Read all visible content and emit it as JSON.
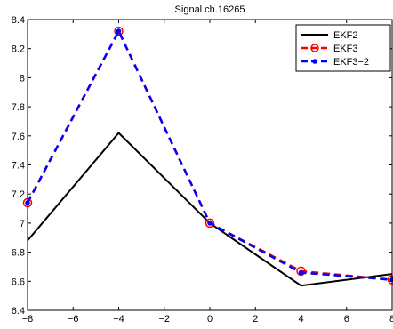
{
  "chart_data": {
    "type": "line",
    "title": "Signal ch.16265",
    "xlabel": "",
    "ylabel": "",
    "xlim": [
      -8,
      8
    ],
    "ylim": [
      6.4,
      8.4
    ],
    "xticks": [
      -8,
      -6,
      -4,
      -2,
      0,
      2,
      4,
      6,
      8
    ],
    "xtick_labels": [
      "−8",
      "−6",
      "−4",
      "−2",
      "0",
      "2",
      "4",
      "6",
      "8"
    ],
    "yticks": [
      6.4,
      6.6,
      6.8,
      7,
      7.2,
      7.4,
      7.6,
      7.8,
      8,
      8.2,
      8.4
    ],
    "ytick_labels": [
      "6.4",
      "6.6",
      "6.8",
      "7",
      "7.2",
      "7.4",
      "7.6",
      "7.8",
      "8",
      "8.2",
      "8.4"
    ],
    "grid": false,
    "legend_position": "top-right",
    "series": [
      {
        "name": "EKF2",
        "color": "#000000",
        "dashed": false,
        "marker": "none",
        "x": [
          -8,
          -4,
          0,
          4,
          8
        ],
        "y": [
          6.88,
          7.62,
          7.0,
          6.57,
          6.65
        ]
      },
      {
        "name": "EKF3",
        "color": "#ff0000",
        "dashed": true,
        "marker": "open-circle",
        "x": [
          -8,
          -4,
          0,
          4,
          8
        ],
        "y": [
          7.14,
          8.32,
          7.0,
          6.67,
          6.61
        ]
      },
      {
        "name": "EKF3−2",
        "color": "#0000ff",
        "dashed": true,
        "marker": "filled-dot",
        "x": [
          -8,
          -4,
          0,
          4,
          8
        ],
        "y": [
          7.14,
          8.32,
          7.0,
          6.66,
          6.61
        ]
      }
    ]
  }
}
